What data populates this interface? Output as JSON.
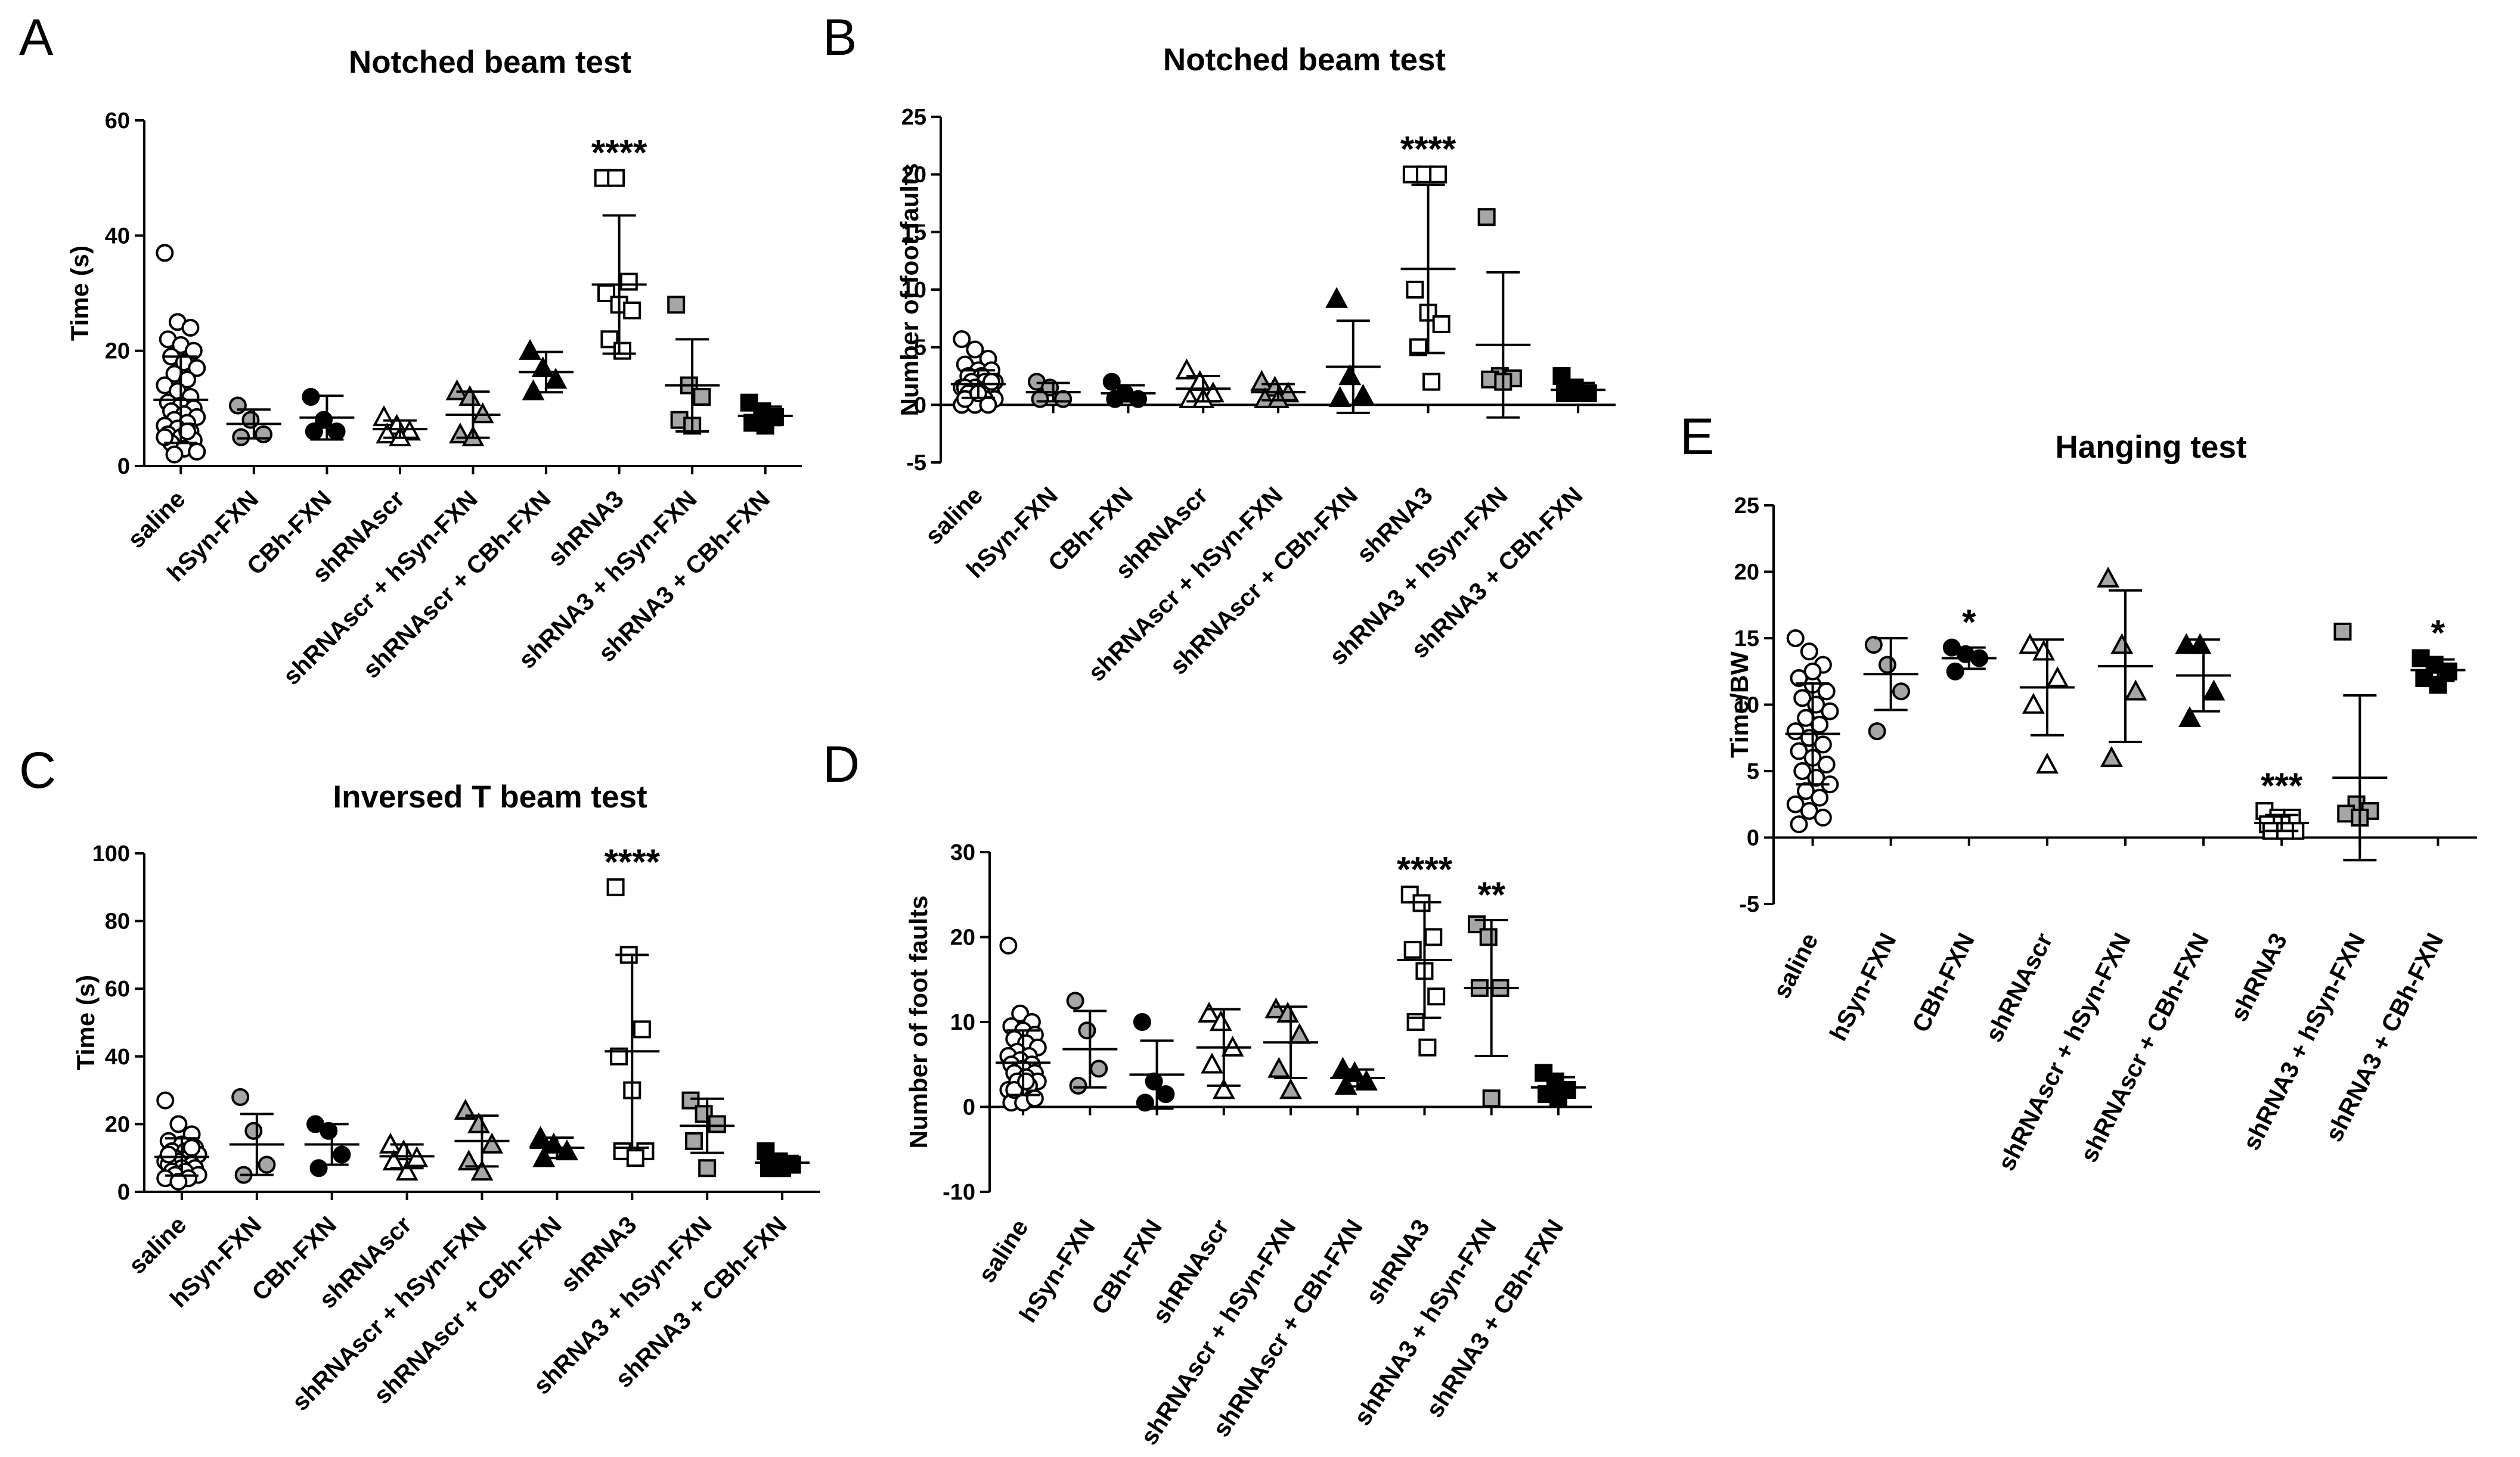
{
  "figure": {
    "panel_letters": [
      "A",
      "B",
      "C",
      "D",
      "E"
    ]
  },
  "chart_data": [
    {
      "panel": "A",
      "type": "scatter",
      "title": "Notched beam test",
      "xlabel": "",
      "ylabel": "Time (s)",
      "ylim": [
        0,
        60
      ],
      "yticks": [
        0,
        20,
        40,
        60
      ],
      "categories": [
        "saline",
        "hSyn-FXN",
        "CBh-FXN",
        "shRNAscr",
        "shRNAscr + hSyn-FXN",
        "shRNAscr + CBh-FXN",
        "shRNA3",
        "shRNA3 + hSyn-FXN",
        "shRNA3 + CBh-FXN"
      ],
      "groups": [
        {
          "name": "saline",
          "marker": "circle",
          "fill": "#ffffff",
          "values": [
            37,
            25,
            24,
            22,
            21,
            20,
            19,
            18,
            17,
            16,
            15,
            14,
            13,
            12,
            11,
            10.5,
            10,
            9.5,
            9,
            8.5,
            8,
            7.5,
            7,
            6.5,
            6,
            5.5,
            5,
            4.5,
            4,
            3,
            2.5,
            2,
            6,
            5
          ],
          "mean": 11.5,
          "sd": 7.5,
          "sig": ""
        },
        {
          "name": "hSyn-FXN",
          "marker": "circle",
          "fill": "#a6a6a6",
          "values": [
            10.5,
            8,
            5.5,
            5
          ],
          "mean": 7.3,
          "sd": 2.5,
          "sig": ""
        },
        {
          "name": "CBh-FXN",
          "marker": "circle",
          "fill": "#000000",
          "values": [
            12,
            8,
            6,
            6
          ],
          "mean": 8.4,
          "sd": 3.8,
          "sig": ""
        },
        {
          "name": "shRNAscr",
          "marker": "triangle",
          "fill": "#ffffff",
          "values": [
            8.5,
            7,
            6,
            5.5,
            5
          ],
          "mean": 6.4,
          "sd": 1.5,
          "sig": ""
        },
        {
          "name": "shRNAscr + hSyn-FXN",
          "marker": "triangle",
          "fill": "#a6a6a6",
          "values": [
            13,
            12,
            9,
            5.5,
            5
          ],
          "mean": 8.9,
          "sd": 4,
          "sig": ""
        },
        {
          "name": "shRNAscr + CBh-FXN",
          "marker": "triangle",
          "fill": "#000000",
          "values": [
            20,
            17,
            15,
            13
          ],
          "mean": 16.3,
          "sd": 3.5,
          "sig": ""
        },
        {
          "name": "shRNA3",
          "marker": "square",
          "fill": "#ffffff",
          "values": [
            50,
            50,
            32,
            30,
            28,
            27,
            22,
            20
          ],
          "mean": 31.5,
          "sd": 12,
          "sig": "****"
        },
        {
          "name": "shRNA3 + hSyn-FXN",
          "marker": "square",
          "fill": "#a6a6a6",
          "values": [
            28,
            14,
            12,
            8,
            7
          ],
          "mean": 14,
          "sd": 8,
          "sig": ""
        },
        {
          "name": "shRNA3 + CBh-FXN",
          "marker": "square",
          "fill": "#000000",
          "values": [
            11,
            9.5,
            8.5,
            7.5,
            7
          ],
          "mean": 8.7,
          "sd": 1.6,
          "sig": ""
        }
      ]
    },
    {
      "panel": "B",
      "type": "scatter",
      "title": "Notched beam test",
      "xlabel": "",
      "ylabel": "Number of foot faults",
      "ylim": [
        -5,
        25
      ],
      "yticks": [
        -5,
        0,
        5,
        10,
        15,
        20,
        25
      ],
      "categories": [
        "saline",
        "hSyn-FXN",
        "CBh-FXN",
        "shRNAscr",
        "shRNAscr + hSyn-FXN",
        "shRNAscr + CBh-FXN",
        "shRNA3",
        "shRNA3 + hSyn-FXN",
        "shRNA3 + CBh-FXN"
      ],
      "groups": [
        {
          "name": "saline",
          "marker": "circle",
          "fill": "#ffffff",
          "values": [
            5.7,
            4.8,
            4,
            3.5,
            3,
            3,
            2.5,
            2.5,
            2,
            2,
            2,
            1.5,
            1.5,
            1.5,
            1.5,
            1,
            1,
            1,
            1,
            0.5,
            0.5,
            0.5,
            0,
            0,
            0,
            0.5,
            1,
            2
          ],
          "mean": 1.8,
          "sd": 1.2,
          "sig": ""
        },
        {
          "name": "hSyn-FXN",
          "marker": "circle",
          "fill": "#a6a6a6",
          "values": [
            2,
            1.5,
            0.5,
            0.5
          ],
          "mean": 1.1,
          "sd": 0.8,
          "sig": ""
        },
        {
          "name": "CBh-FXN",
          "marker": "circle",
          "fill": "#000000",
          "values": [
            2,
            1,
            0.5,
            0.5
          ],
          "mean": 1,
          "sd": 0.7,
          "sig": ""
        },
        {
          "name": "shRNAscr",
          "marker": "triangle",
          "fill": "#ffffff",
          "values": [
            3,
            2,
            1,
            0.5,
            0.5
          ],
          "mean": 1.4,
          "sd": 1.1,
          "sig": ""
        },
        {
          "name": "shRNAscr + hSyn-FXN",
          "marker": "triangle",
          "fill": "#a6a6a6",
          "values": [
            2,
            1.5,
            1,
            0.5,
            0.5
          ],
          "mean": 1.1,
          "sd": 0.7,
          "sig": ""
        },
        {
          "name": "shRNAscr + CBh-FXN",
          "marker": "triangle",
          "fill": "#000000",
          "values": [
            9.2,
            2.5,
            0.8,
            0.6
          ],
          "mean": 3.3,
          "sd": 4,
          "sig": ""
        },
        {
          "name": "shRNA3",
          "marker": "square",
          "fill": "#ffffff",
          "values": [
            20,
            20,
            20,
            10,
            8,
            7,
            5,
            2
          ],
          "mean": 11.8,
          "sd": 7.3,
          "sig": "****"
        },
        {
          "name": "shRNA3 + hSyn-FXN",
          "marker": "square",
          "fill": "#a6a6a6",
          "values": [
            16.3,
            2.5,
            2.3,
            2.2,
            2
          ],
          "mean": 5.2,
          "sd": 6.3,
          "sig": ""
        },
        {
          "name": "shRNA3 + CBh-FXN",
          "marker": "square",
          "fill": "#000000",
          "values": [
            2.5,
            1.5,
            1,
            1,
            1
          ],
          "mean": 1.3,
          "sd": 0.6,
          "sig": ""
        }
      ]
    },
    {
      "panel": "C",
      "type": "scatter",
      "title": "Inversed T beam test",
      "xlabel": "",
      "ylabel": "Time (s)",
      "ylim": [
        0,
        100
      ],
      "yticks": [
        0,
        20,
        40,
        60,
        80,
        100
      ],
      "categories": [
        "saline",
        "hSyn-FXN",
        "CBh-FXN",
        "shRNAscr",
        "shRNAscr + hSyn-FXN",
        "shRNAscr + CBh-FXN",
        "shRNA3",
        "shRNA3 + hSyn-FXN",
        "shRNA3 + CBh-FXN"
      ],
      "groups": [
        {
          "name": "saline",
          "marker": "circle",
          "fill": "#ffffff",
          "values": [
            27,
            20,
            17,
            15,
            14,
            13,
            12,
            12,
            11,
            10,
            10,
            9,
            9,
            8,
            8,
            7,
            7,
            6,
            6,
            5,
            5,
            4,
            4,
            3,
            13,
            11
          ],
          "mean": 10.3,
          "sd": 5.5,
          "sig": ""
        },
        {
          "name": "hSyn-FXN",
          "marker": "circle",
          "fill": "#a6a6a6",
          "values": [
            28,
            18,
            8,
            5
          ],
          "mean": 14,
          "sd": 9,
          "sig": ""
        },
        {
          "name": "CBh-FXN",
          "marker": "circle",
          "fill": "#000000",
          "values": [
            20,
            18,
            11,
            7
          ],
          "mean": 14,
          "sd": 6,
          "sig": ""
        },
        {
          "name": "shRNAscr",
          "marker": "triangle",
          "fill": "#ffffff",
          "values": [
            14,
            12,
            10,
            9,
            6
          ],
          "mean": 10.5,
          "sd": 3.5,
          "sig": ""
        },
        {
          "name": "shRNAscr + hSyn-FXN",
          "marker": "triangle",
          "fill": "#a6a6a6",
          "values": [
            24,
            20,
            14,
            9,
            6
          ],
          "mean": 15,
          "sd": 7.5,
          "sig": ""
        },
        {
          "name": "shRNAscr + CBh-FXN",
          "marker": "triangle",
          "fill": "#000000",
          "values": [
            16,
            14,
            12,
            10
          ],
          "mean": 13,
          "sd": 3,
          "sig": ""
        },
        {
          "name": "shRNA3",
          "marker": "square",
          "fill": "#ffffff",
          "values": [
            90,
            70,
            48,
            40,
            30,
            12,
            12,
            10
          ],
          "mean": 41.5,
          "sd": 28.5,
          "sig": "****"
        },
        {
          "name": "shRNA3 + hSyn-FXN",
          "marker": "square",
          "fill": "#a6a6a6",
          "values": [
            27,
            23,
            20,
            15,
            7
          ],
          "mean": 19.5,
          "sd": 8,
          "sig": ""
        },
        {
          "name": "shRNA3 + CBh-FXN",
          "marker": "square",
          "fill": "#000000",
          "values": [
            12,
            9,
            8,
            7,
            7
          ],
          "mean": 8.6,
          "sd": 2,
          "sig": ""
        }
      ]
    },
    {
      "panel": "D",
      "type": "scatter",
      "title": "",
      "xlabel": "",
      "ylabel": "Number of foot faults",
      "ylim": [
        -10,
        30
      ],
      "yticks": [
        -10,
        0,
        10,
        20,
        30
      ],
      "categories": [
        "saline",
        "hSyn-FXN",
        "CBh-FXN",
        "shRNAscr",
        "shRNAscr + hSyn-FXN",
        "shRNAscr + CBh-FXN",
        "shRNA3",
        "shRNA3 + hSyn-FXN",
        "shRNA3 + CBh-FXN"
      ],
      "groups": [
        {
          "name": "saline",
          "marker": "circle",
          "fill": "#ffffff",
          "values": [
            19,
            11,
            10,
            9.5,
            9,
            8.5,
            8,
            7.5,
            7,
            6.5,
            6,
            6,
            5.5,
            5,
            5,
            4.5,
            4,
            4,
            3.5,
            3,
            3,
            2.5,
            2,
            1.5,
            1,
            0.5,
            0.5,
            1,
            2,
            3
          ],
          "mean": 5.2,
          "sd": 3.8,
          "sig": ""
        },
        {
          "name": "hSyn-FXN",
          "marker": "circle",
          "fill": "#a6a6a6",
          "values": [
            12.5,
            9,
            4.5,
            2.5
          ],
          "mean": 6.8,
          "sd": 4.5,
          "sig": ""
        },
        {
          "name": "CBh-FXN",
          "marker": "circle",
          "fill": "#000000",
          "values": [
            10,
            3,
            1.5,
            0.5
          ],
          "mean": 3.8,
          "sd": 4,
          "sig": ""
        },
        {
          "name": "shRNAscr",
          "marker": "triangle",
          "fill": "#ffffff",
          "values": [
            11,
            10,
            7,
            5,
            2
          ],
          "mean": 7,
          "sd": 4.5,
          "sig": ""
        },
        {
          "name": "shRNAscr + hSyn-FXN",
          "marker": "triangle",
          "fill": "#a6a6a6",
          "values": [
            11.5,
            11,
            8.5,
            4.5,
            2
          ],
          "mean": 7.6,
          "sd": 4.2,
          "sig": ""
        },
        {
          "name": "shRNAscr + CBh-FXN",
          "marker": "triangle",
          "fill": "#000000",
          "values": [
            4.5,
            4,
            3,
            2.5
          ],
          "mean": 3.4,
          "sd": 1,
          "sig": ""
        },
        {
          "name": "shRNA3",
          "marker": "square",
          "fill": "#ffffff",
          "values": [
            25,
            24,
            20,
            18.5,
            16,
            13,
            10,
            7
          ],
          "mean": 17.3,
          "sd": 6.8,
          "sig": "****"
        },
        {
          "name": "shRNA3 + hSyn-FXN",
          "marker": "square",
          "fill": "#a6a6a6",
          "values": [
            21.5,
            20,
            14,
            14,
            1
          ],
          "mean": 14,
          "sd": 8,
          "sig": "**"
        },
        {
          "name": "shRNA3 + CBh-FXN",
          "marker": "square",
          "fill": "#000000",
          "values": [
            4,
            3,
            2,
            1.5,
            1
          ],
          "mean": 2.3,
          "sd": 1.2,
          "sig": ""
        }
      ]
    },
    {
      "panel": "E",
      "type": "scatter",
      "title": "Hanging test",
      "xlabel": "",
      "ylabel": "Time/BW",
      "ylim": [
        -5,
        25
      ],
      "yticks": [
        -5,
        0,
        5,
        10,
        15,
        20,
        25
      ],
      "categories": [
        "saline",
        "hSyn-FXN",
        "CBh-FXN",
        "shRNAscr",
        "shRNAscr + hSyn-FXN",
        "shRNAscr + CBh-FXN",
        "shRNA3",
        "shRNA3 + hSyn-FXN",
        "shRNA3 + CBh-FXN"
      ],
      "groups": [
        {
          "name": "saline",
          "marker": "circle",
          "fill": "#ffffff",
          "values": [
            15,
            14,
            13,
            12,
            11.5,
            11,
            10.5,
            10,
            9.5,
            9,
            8.5,
            8,
            7.5,
            7,
            6.5,
            6,
            5.5,
            5,
            4.5,
            4,
            3.5,
            3,
            2.5,
            2,
            1.5,
            1,
            12.5,
            11
          ],
          "mean": 7.8,
          "sd": 3.8,
          "sig": ""
        },
        {
          "name": "hSyn-FXN",
          "marker": "circle",
          "fill": "#a6a6a6",
          "values": [
            14.5,
            13,
            11,
            8
          ],
          "mean": 12.3,
          "sd": 2.7,
          "sig": ""
        },
        {
          "name": "CBh-FXN",
          "marker": "circle",
          "fill": "#000000",
          "values": [
            14.3,
            13.8,
            13.5,
            12.5
          ],
          "mean": 13.5,
          "sd": 0.8,
          "sig": "*"
        },
        {
          "name": "shRNAscr",
          "marker": "triangle",
          "fill": "#ffffff",
          "values": [
            14.5,
            14,
            12,
            10,
            5.5
          ],
          "mean": 11.3,
          "sd": 3.6,
          "sig": ""
        },
        {
          "name": "shRNAscr + hSyn-FXN",
          "marker": "triangle",
          "fill": "#a6a6a6",
          "values": [
            19.5,
            14.5,
            11,
            6
          ],
          "mean": 12.9,
          "sd": 5.7,
          "sig": ""
        },
        {
          "name": "shRNAscr + CBh-FXN",
          "marker": "triangle",
          "fill": "#000000",
          "values": [
            14.5,
            14.5,
            11,
            9
          ],
          "mean": 12.2,
          "sd": 2.7,
          "sig": ""
        },
        {
          "name": "shRNA3",
          "marker": "square",
          "fill": "#ffffff",
          "values": [
            2,
            1.5,
            1.5,
            1,
            1,
            0.5,
            0.5,
            0.5
          ],
          "mean": 1.1,
          "sd": 0.6,
          "sig": "***"
        },
        {
          "name": "shRNA3 + hSyn-FXN",
          "marker": "square",
          "fill": "#a6a6a6",
          "values": [
            15.5,
            2.5,
            2,
            1.8,
            1.5
          ],
          "mean": 4.5,
          "sd": 6.2,
          "sig": ""
        },
        {
          "name": "shRNA3 + CBh-FXN",
          "marker": "square",
          "fill": "#000000",
          "values": [
            13.5,
            13,
            12.5,
            12,
            11.5
          ],
          "mean": 12.6,
          "sd": 0.8,
          "sig": "*"
        }
      ]
    }
  ]
}
